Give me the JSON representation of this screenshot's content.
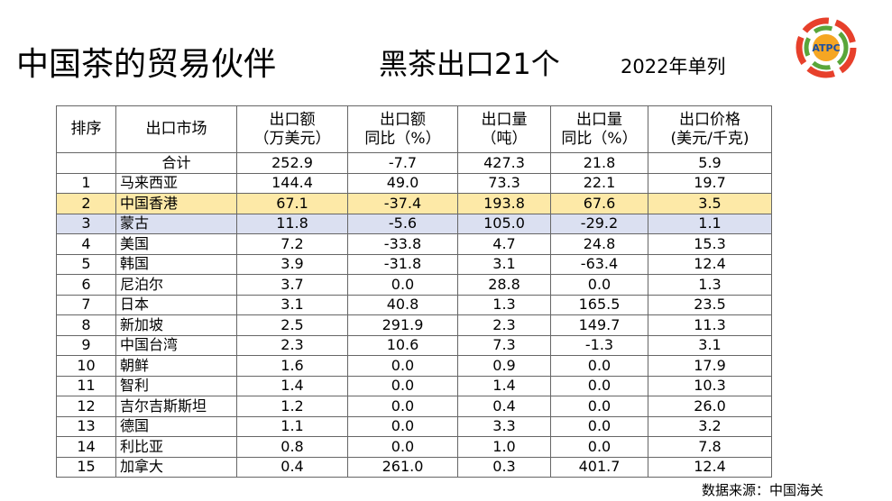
{
  "header": {
    "title": "中国茶的贸易伙伴",
    "subtitle": "黑茶出口21个",
    "note": "2022年单列"
  },
  "logo": {
    "text": "ATPC"
  },
  "table": {
    "header": [
      [
        "排序"
      ],
      [
        "出口市场"
      ],
      [
        "出口额",
        "（万美元）"
      ],
      [
        "出口额",
        "同比（%）"
      ],
      [
        "出口量",
        "（吨）"
      ],
      [
        "出口量",
        "同比（%）"
      ],
      [
        "出口价格",
        "(美元/千克)"
      ]
    ],
    "rows": [
      [
        null,
        "合计",
        "252.9",
        "-7.7",
        "427.3",
        "21.8",
        "5.9"
      ],
      [
        "1",
        "马来西亚",
        "144.4",
        "49.0",
        "73.3",
        "22.1",
        "19.7"
      ],
      [
        "2",
        "中国香港",
        "67.1",
        "-37.4",
        "193.8",
        "67.6",
        "3.5"
      ],
      [
        "3",
        "蒙古",
        "11.8",
        "-5.6",
        "105.0",
        "-29.2",
        "1.1"
      ],
      [
        "4",
        "美国",
        "7.2",
        "-33.8",
        "4.7",
        "24.8",
        "15.3"
      ],
      [
        "5",
        "韩国",
        "3.9",
        "-31.8",
        "3.1",
        "-63.4",
        "12.4"
      ],
      [
        "6",
        "尼泊尔",
        "3.7",
        "0.0",
        "28.8",
        "0.0",
        "1.3"
      ],
      [
        "7",
        "日本",
        "3.1",
        "40.8",
        "1.3",
        "165.5",
        "23.5"
      ],
      [
        "8",
        "新加坡",
        "2.5",
        "291.9",
        "2.3",
        "149.7",
        "11.3"
      ],
      [
        "9",
        "中国台湾",
        "2.3",
        "10.6",
        "7.3",
        "-1.3",
        "3.1"
      ],
      [
        "10",
        "朝鲜",
        "1.6",
        "0.0",
        "0.9",
        "0.0",
        "17.9"
      ],
      [
        "11",
        "智利",
        "1.4",
        "0.0",
        "1.4",
        "0.0",
        "10.3"
      ],
      [
        "12",
        "吉尔吉斯斯坦",
        "1.2",
        "0.0",
        "0.4",
        "0.0",
        "26.0"
      ],
      [
        "13",
        "德国",
        "1.1",
        "0.0",
        "3.3",
        "0.0",
        "3.2"
      ],
      [
        "14",
        "利比亚",
        "0.8",
        "0.0",
        "1.0",
        "0.0",
        "7.8"
      ],
      [
        "15",
        "加拿大",
        "0.4",
        "261.0",
        "0.3",
        "401.7",
        "12.4"
      ]
    ]
  },
  "footer": {
    "source": "数据来源：中国海关"
  }
}
